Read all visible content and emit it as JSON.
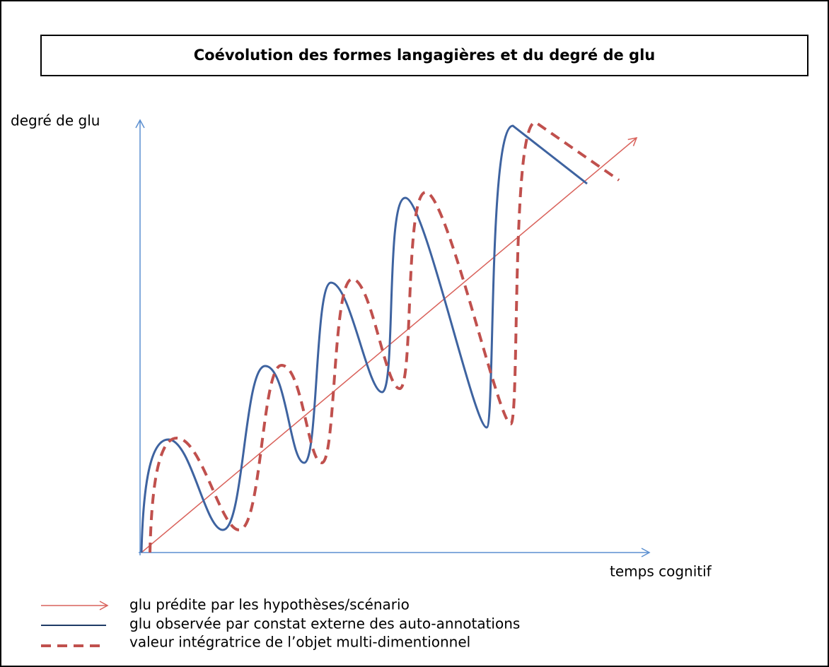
{
  "title": "Coévolution des formes langagières et du degré de glu",
  "y_axis_label": "degré de glu",
  "x_axis_label": "temps cognitif",
  "legend": [
    "glu prédite par les hypothèses/scénario",
    "glu observée par constat externe des auto-annotations",
    "valeur intégratrice de l’objet multi-dimentionnel"
  ]
}
